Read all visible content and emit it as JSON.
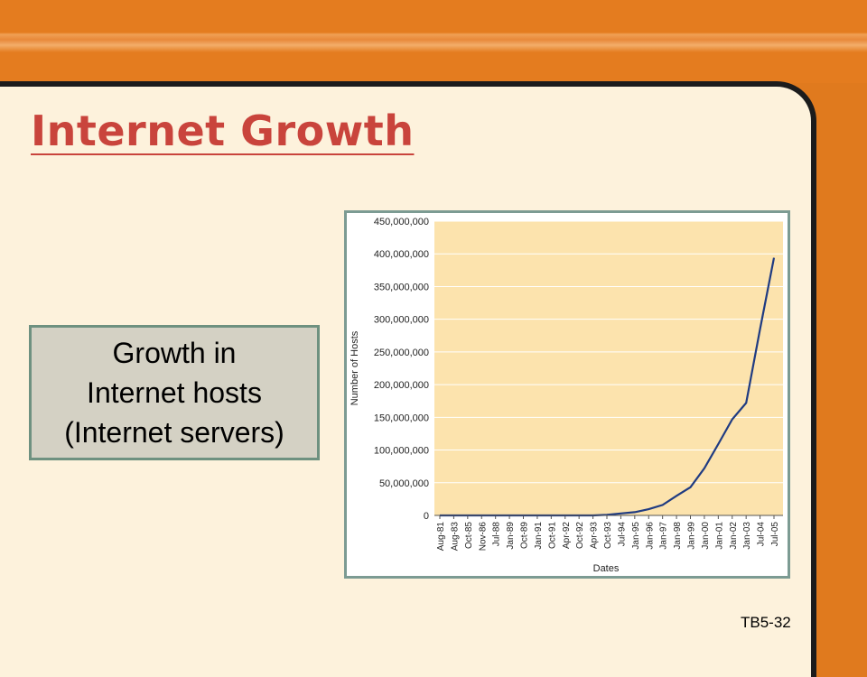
{
  "slide": {
    "title": "Internet Growth",
    "callout_lines": [
      "Growth in",
      "Internet hosts",
      "(Internet servers)"
    ],
    "footer_code": "TB5-32"
  },
  "colors": {
    "accent_orange": "#e07a1e",
    "title_red": "#c9443c",
    "panel_cream": "#fdf2dc",
    "plot_fill": "#fce3ad",
    "line_blue": "#1f3b82"
  },
  "chart_data": {
    "type": "line",
    "xlabel": "Dates",
    "ylabel": "Number of Hosts",
    "ylim": [
      0,
      450000000
    ],
    "yticks": [
      0,
      50000000,
      100000000,
      150000000,
      200000000,
      250000000,
      300000000,
      350000000,
      400000000,
      450000000
    ],
    "ytick_labels": [
      "0",
      "50,000,000",
      "100,000,000",
      "150,000,000",
      "200,000,000",
      "250,000,000",
      "300,000,000",
      "350,000,000",
      "400,000,000",
      "450,000,000"
    ],
    "categories": [
      "Aug-81",
      "Aug-83",
      "Oct-85",
      "Nov-86",
      "Jul-88",
      "Jan-89",
      "Oct-89",
      "Jan-91",
      "Oct-91",
      "Apr-92",
      "Oct-92",
      "Apr-93",
      "Oct-93",
      "Jul-94",
      "Jan-95",
      "Jan-96",
      "Jan-97",
      "Jan-98",
      "Jan-99",
      "Jan-00",
      "Jan-01",
      "Jan-02",
      "Jan-03",
      "Jul-04",
      "Jul-05"
    ],
    "grid": true,
    "series": [
      {
        "values": [
          0,
          0,
          0,
          0,
          0,
          0,
          0,
          0,
          0,
          0,
          0,
          0,
          1000000,
          3000000,
          5000000,
          9500000,
          16000000,
          30000000,
          43000000,
          72000000,
          109000000,
          147000000,
          172000000,
          285000000,
          394000000
        ]
      }
    ]
  }
}
